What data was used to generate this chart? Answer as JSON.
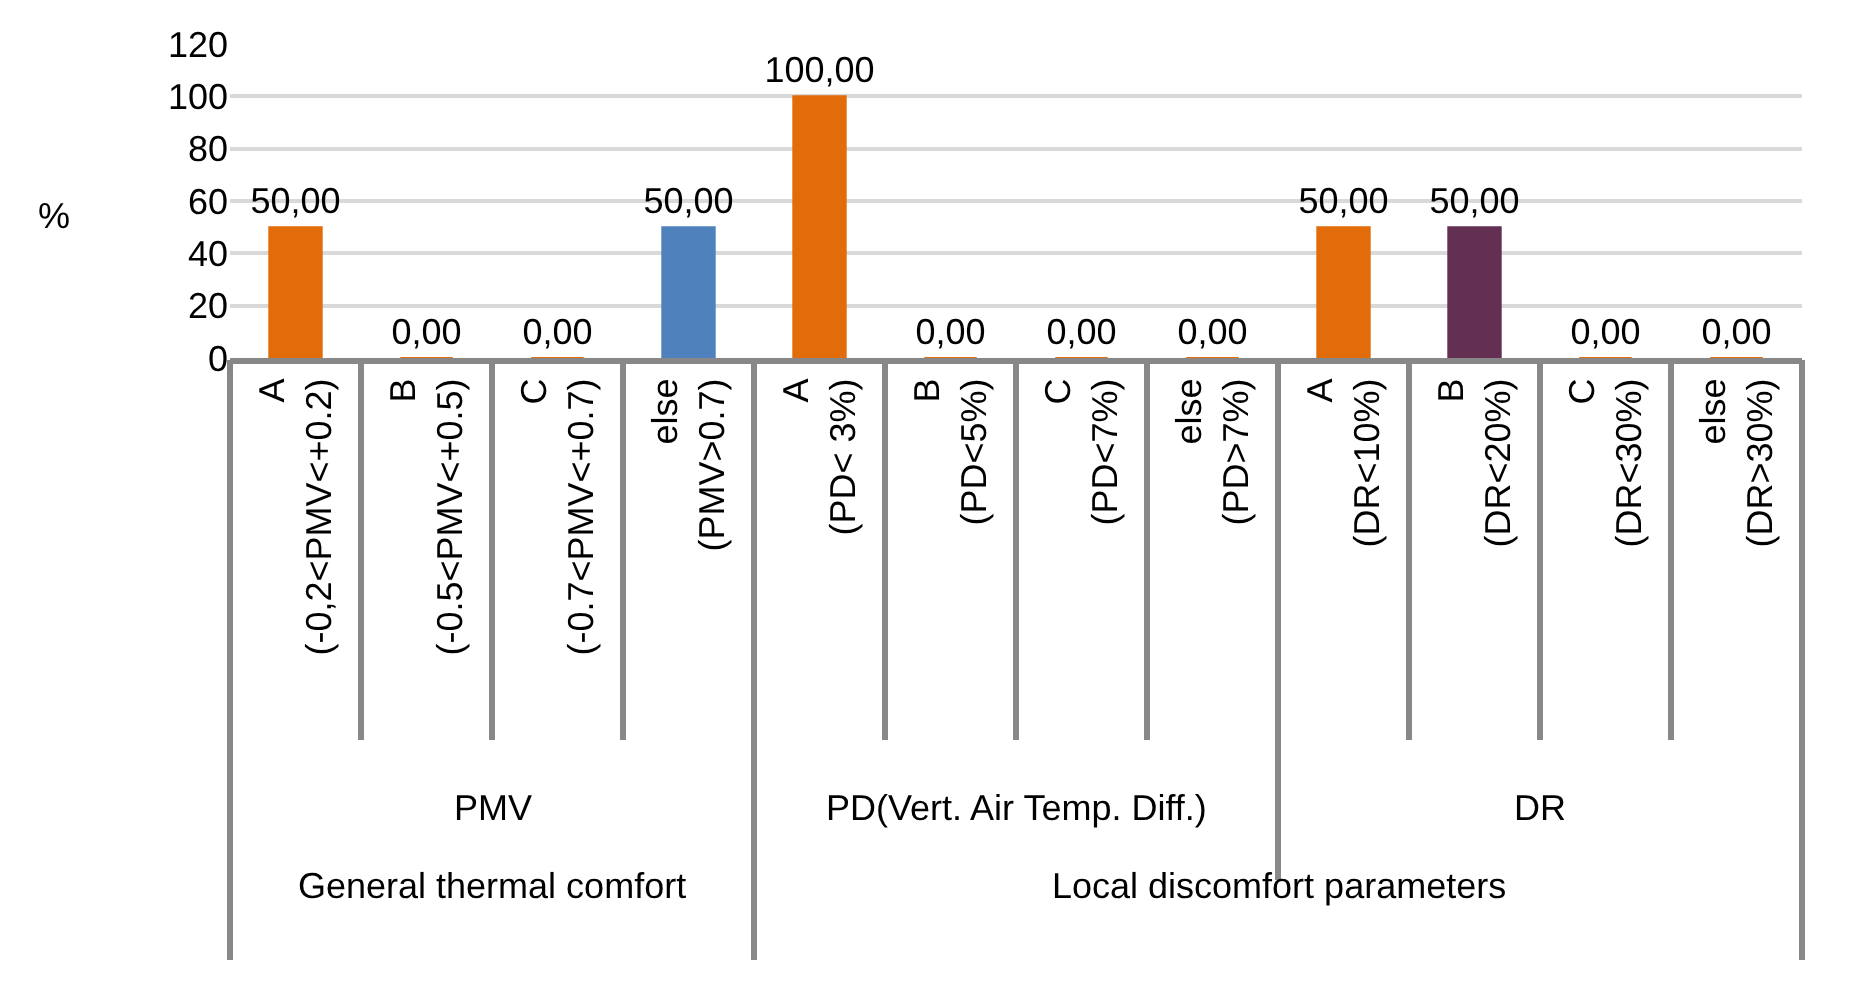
{
  "chart_data": {
    "type": "bar",
    "ylabel": "%",
    "categories": [
      "A\n(-0,2<PMV<+0.2)",
      "B\n(-0.5<PMV<+0.5)",
      "C\n(-0.7<PMV<+0.7)",
      "else\n(PMV>0.7)",
      "A\n(PD< 3%)",
      "B\n(PD<5%)",
      "C\n(PD<7%)",
      "else\n(PD>7%)",
      "A\n(DR<10%)",
      "B\n(DR<20%)",
      "C\n(DR<30%)",
      "else\n(DR>30%)"
    ],
    "values": [
      50,
      0,
      0,
      50,
      100,
      0,
      0,
      0,
      50,
      50,
      0,
      0
    ],
    "colors": [
      "#e36c0a",
      "#e36c0a",
      "#e36c0a",
      "#4f81bd",
      "#e36c0a",
      "#e36c0a",
      "#e36c0a",
      "#e36c0a",
      "#e36c0a",
      "#632f53",
      "#e36c0a",
      "#e36c0a"
    ],
    "value_labels": [
      "50,00",
      "0,00",
      "0,00",
      "50,00",
      "100,00",
      "0,00",
      "0,00",
      "0,00",
      "50,00",
      "50,00",
      "0,00",
      "0,00"
    ],
    "ylim": [
      0,
      120
    ],
    "yticks": [
      0,
      20,
      40,
      60,
      80,
      100,
      120
    ],
    "grid": "y",
    "annotations": [
      "PMV",
      "PD(Vert. Air Temp. Diff.)",
      "DR",
      "General thermal comfort",
      "Local discomfort parameters"
    ]
  }
}
